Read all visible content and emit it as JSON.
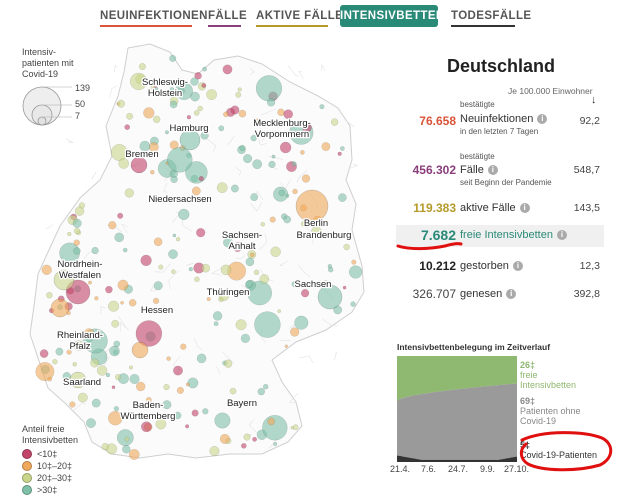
{
  "tabs": [
    {
      "label": "NEUINFEKTIONEN",
      "color": "#d9543a",
      "active": false
    },
    {
      "label": "FÄLLE",
      "color": "#8a3e7a",
      "active": false
    },
    {
      "label": "AKTIVE FÄLLE",
      "color": "#b59a2a",
      "active": false
    },
    {
      "label": "INTENSIVBETTEN",
      "color": "#2a8a78",
      "active": true
    },
    {
      "label": "TODESFÄLLE",
      "color": "#333333",
      "active": false
    }
  ],
  "size_legend": {
    "title": "Intensiv-\npatienten mit\nCovid-19",
    "values": [
      "139",
      "50",
      "7"
    ]
  },
  "color_legend": {
    "title": "Anteil freie\nIntensivbetten",
    "items": [
      {
        "label": "<10‡",
        "color": "#c2446a"
      },
      {
        "label": "10‡–20‡",
        "color": "#f0a85a"
      },
      {
        "label": "20‡–30‡",
        "color": "#c9d68a"
      },
      {
        "label": ">30‡",
        "color": "#7fc0a8"
      }
    ]
  },
  "states": [
    "Schleswig-\nHolstein",
    "Mecklenburg-\nVorpommern",
    "Hamburg",
    "Bremen",
    "Niedersachsen",
    "Berlin",
    "Sachsen-\nAnhalt",
    "Brandenburg",
    "Nordrhein-\nWestfalen",
    "Thüringen",
    "Sachsen",
    "Hessen",
    "Rheinland-\nPfalz",
    "Saarland",
    "Bayern",
    "Baden-\nWürttemberg"
  ],
  "panel": {
    "title": "Deutschland",
    "per100k": "Je 100.000 Einwohner",
    "arrow": "↓",
    "stats": [
      {
        "num": "76.658",
        "color": "#d9543a",
        "pre": "bestätigte",
        "label": "Neuinfektionen",
        "post": "in den letzten 7 Tagen",
        "per": "92,2"
      },
      {
        "num": "456.302",
        "color": "#8a3e7a",
        "pre": "bestätigte",
        "label": "Fälle",
        "post": "seit Beginn der Pandemie",
        "per": "548,7"
      },
      {
        "num": "119.383",
        "color": "#b59a2a",
        "pre": "",
        "label": "aktive Fälle",
        "post": "",
        "per": "143,5"
      },
      {
        "num": "7.682",
        "color": "#2a8a78",
        "pre": "",
        "label": "freie Intensivbetten",
        "post": "",
        "per": ""
      },
      {
        "num": "10.212",
        "color": "#222222",
        "pre": "",
        "label": "gestorben",
        "post": "",
        "per": "12,3"
      },
      {
        "num": "326.707",
        "color": "#444444",
        "pre": "",
        "label": "genesen",
        "post": "",
        "per": "392,8"
      }
    ],
    "info_symbol": "i"
  },
  "chart_data": {
    "type": "area",
    "title": "Intensivbettenbelegung im Zeitverlauf",
    "x_ticks": [
      "21.4.",
      "7.6.",
      "24.7.",
      "9.9.",
      "27.10."
    ],
    "series": [
      {
        "name": "freie\nIntensivbetten",
        "last_value": "26‡",
        "color": "#8fb870"
      },
      {
        "name": "Patienten ohne\nCovid-19",
        "last_value": "69‡",
        "color": "#9a9a9a"
      },
      {
        "name": "Covid-19-Patienten",
        "last_value": "5‡",
        "color": "#333333"
      }
    ]
  }
}
